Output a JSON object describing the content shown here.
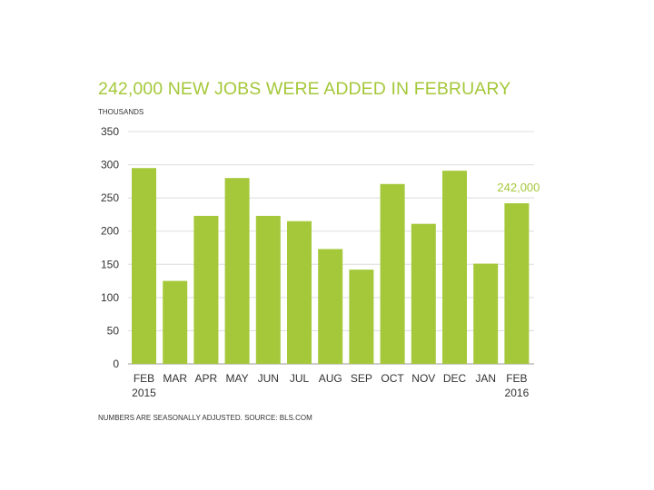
{
  "accent_color": "#a5c83a",
  "title": "242,000 NEW JOBS WERE ADDED IN FEBRUARY",
  "unit_label": "THOUSANDS",
  "source_note": "NUMBERS ARE SEASONALLY ADJUSTED. SOURCE: BLS.COM",
  "chart_data": {
    "type": "bar",
    "title": "242,000 NEW JOBS WERE ADDED IN FEBRUARY",
    "ylabel": "THOUSANDS",
    "xlabel": "",
    "ylim": [
      0,
      350
    ],
    "yticks": [
      0,
      50,
      100,
      150,
      200,
      250,
      300,
      350
    ],
    "grid": true,
    "categories": [
      {
        "label": "FEB",
        "sublabel": "2015"
      },
      {
        "label": "MAR",
        "sublabel": ""
      },
      {
        "label": "APR",
        "sublabel": ""
      },
      {
        "label": "MAY",
        "sublabel": ""
      },
      {
        "label": "JUN",
        "sublabel": ""
      },
      {
        "label": "JUL",
        "sublabel": ""
      },
      {
        "label": "AUG",
        "sublabel": ""
      },
      {
        "label": "SEP",
        "sublabel": ""
      },
      {
        "label": "OCT",
        "sublabel": ""
      },
      {
        "label": "NOV",
        "sublabel": ""
      },
      {
        "label": "DEC",
        "sublabel": ""
      },
      {
        "label": "JAN",
        "sublabel": ""
      },
      {
        "label": "FEB",
        "sublabel": "2016"
      }
    ],
    "values": [
      295,
      125,
      223,
      280,
      223,
      215,
      173,
      142,
      271,
      211,
      291,
      151,
      242
    ],
    "annotations": [
      {
        "index": 12,
        "text": "242,000"
      }
    ],
    "bar_color": "#a5c83a"
  }
}
